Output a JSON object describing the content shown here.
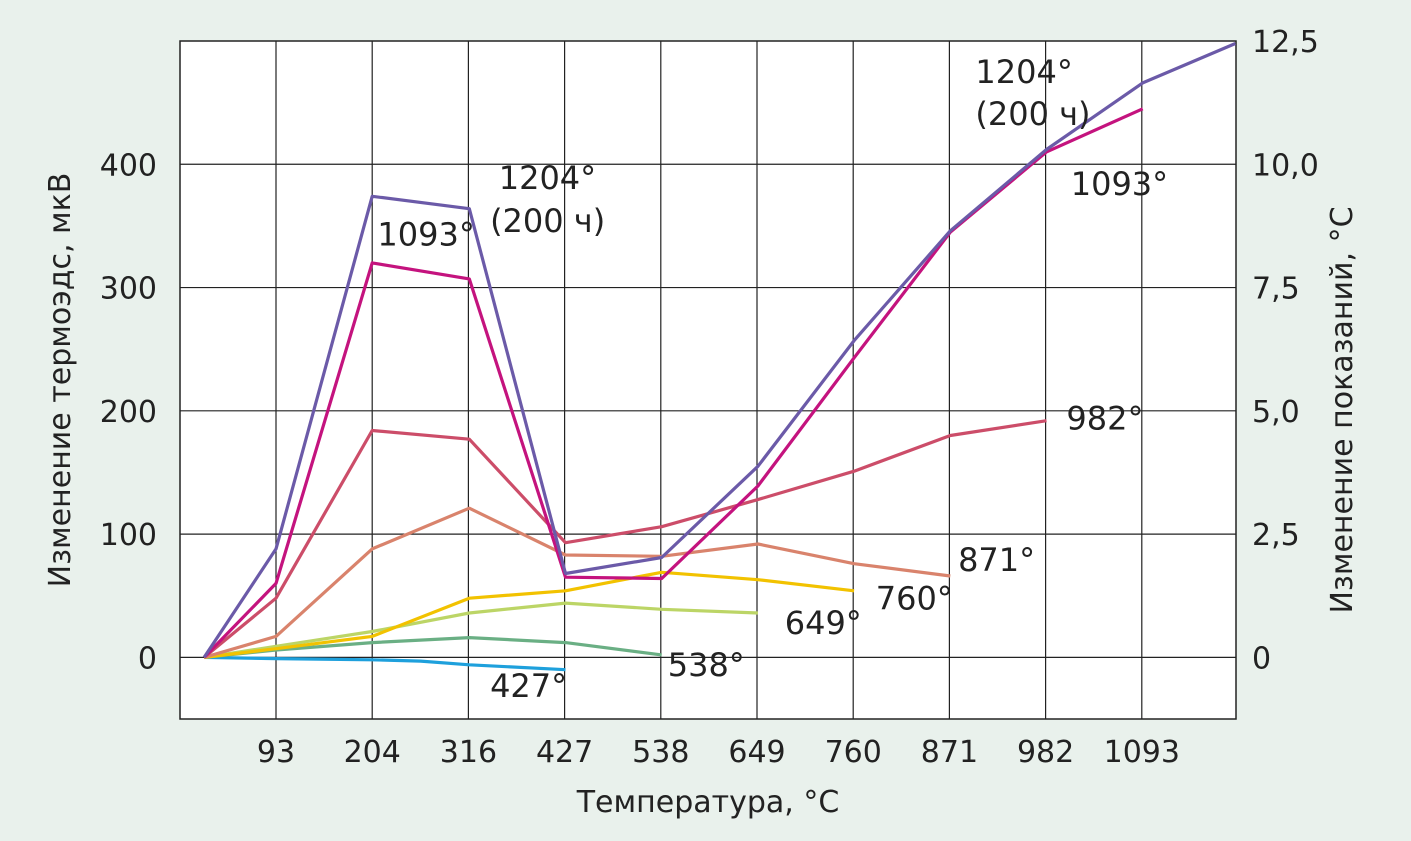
{
  "chart_data": {
    "type": "line",
    "xlabel": "Температура, °C",
    "ylabel_left": "Изменение термоэдс, мкВ",
    "ylabel_right": "Изменение показаний, °C",
    "x_ticks": [
      "93",
      "204",
      "316",
      "427",
      "538",
      "649",
      "760",
      "871",
      "982",
      "1093"
    ],
    "y_left_ticks": [
      "0",
      "100",
      "200",
      "300",
      "400"
    ],
    "y_right_ticks": [
      "0",
      "2,5",
      "5,0",
      "7,5",
      "10,0",
      "12,5"
    ],
    "ylim_left": [
      -50,
      500
    ],
    "ylim_right": [
      -1.25,
      12.5
    ],
    "xlim": [
      -10,
      1200
    ],
    "grid": true,
    "series": [
      {
        "name": "427°",
        "color": "#1ea0dc",
        "x": [
          10,
          93,
          204,
          260,
          316,
          427
        ],
        "y": [
          0,
          -1,
          -2,
          -3,
          -6,
          -10
        ]
      },
      {
        "name": "538°",
        "color": "#6aaf84",
        "x": [
          10,
          93,
          204,
          316,
          427,
          538
        ],
        "y": [
          0,
          6,
          12,
          16,
          12,
          2
        ]
      },
      {
        "name": "649°",
        "color": "#bcd566",
        "x": [
          10,
          93,
          204,
          316,
          427,
          538,
          649
        ],
        "y": [
          0,
          9,
          21,
          36,
          44,
          39,
          36
        ]
      },
      {
        "name": "760°",
        "color": "#f2c200",
        "x": [
          10,
          93,
          204,
          316,
          427,
          538,
          649,
          760
        ],
        "y": [
          0,
          7,
          17,
          48,
          54,
          69,
          63,
          54
        ]
      },
      {
        "name": "871°",
        "color": "#d9836c",
        "x": [
          10,
          93,
          204,
          316,
          427,
          538,
          649,
          760,
          871
        ],
        "y": [
          0,
          17,
          88,
          121,
          83,
          82,
          92,
          76,
          66
        ]
      },
      {
        "name": "982°",
        "color": "#cc4d69",
        "x": [
          10,
          93,
          204,
          316,
          427,
          538,
          649,
          760,
          871,
          982
        ],
        "y": [
          0,
          48,
          184,
          177,
          93,
          106,
          128,
          151,
          180,
          192
        ]
      },
      {
        "name": "1093°",
        "color": "#c4137e",
        "x": [
          10,
          93,
          204,
          316,
          427,
          538,
          649,
          760,
          871,
          982,
          1093
        ],
        "y": [
          0,
          60,
          320,
          307,
          65,
          64,
          139,
          243,
          345,
          410,
          445
        ]
      },
      {
        "name": "1204° (200 ч)",
        "color": "#6b5aa8",
        "x": [
          10,
          93,
          204,
          316,
          427,
          538,
          649,
          760,
          871,
          982,
          1093,
          1200
        ],
        "y": [
          0,
          88,
          374,
          364,
          68,
          81,
          155,
          257,
          346,
          412,
          466,
          498
        ]
      }
    ],
    "annotations": [
      {
        "text": "427°",
        "x": 340,
        "y": -32
      },
      {
        "text": "538°",
        "x": 545,
        "y": -15
      },
      {
        "text": "649°",
        "x": 680,
        "y": 19
      },
      {
        "text": "760°",
        "x": 785,
        "y": 39
      },
      {
        "text": "871°",
        "x": 880,
        "y": 70
      },
      {
        "text": "982°",
        "x": 1005,
        "y": 185
      },
      {
        "text": "1093°",
        "x": 210,
        "y": 334
      },
      {
        "text": "1093°",
        "x": 1010,
        "y": 375
      },
      {
        "text": "1204°",
        "x": 350,
        "y": 380
      },
      {
        "text": "(200 ч)",
        "x": 340,
        "y": 345
      },
      {
        "text": "1204°",
        "x": 900,
        "y": 466
      },
      {
        "text": "(200 ч)",
        "x": 900,
        "y": 432
      }
    ]
  }
}
